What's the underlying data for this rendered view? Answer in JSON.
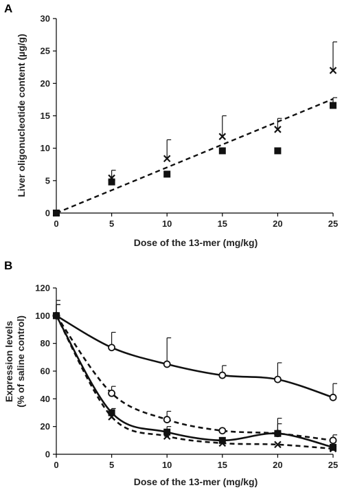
{
  "chart_data": [
    {
      "panel": "A",
      "type": "scatter",
      "xlabel": "Dose of the 13-mer (mg/kg)",
      "ylabel": "Liver oligonucleotide content (µg/g)",
      "xlim": [
        0,
        25
      ],
      "ylim": [
        0,
        30
      ],
      "xticks": [
        "0",
        "5",
        "10",
        "15",
        "20",
        "25"
      ],
      "yticks": [
        "0",
        "5",
        "10",
        "15",
        "20",
        "25",
        "30"
      ],
      "grid": false,
      "series": [
        {
          "marker": "cross",
          "x": [
            0,
            5,
            10,
            15,
            20,
            25
          ],
          "y": [
            0,
            5.4,
            8.4,
            11.8,
            12.9,
            22.0
          ],
          "error": [
            0,
            1.2,
            2.9,
            3.2,
            1.7,
            4.4
          ]
        },
        {
          "marker": "filled-square",
          "x": [
            0,
            5,
            10,
            15,
            20,
            25
          ],
          "y": [
            0,
            4.8,
            6.0,
            9.6,
            9.6,
            16.6
          ],
          "error": [
            0,
            0,
            0,
            0,
            0,
            1.2
          ]
        }
      ],
      "fit_line": {
        "style": "dashed",
        "x": [
          0,
          25
        ],
        "y": [
          0,
          17.6
        ]
      }
    },
    {
      "panel": "B",
      "type": "line",
      "xlabel": "Dose of the 13-mer (mg/kg)",
      "ylabel": "Expression levels",
      "ylabel2": "(% of saline control)",
      "xlim": [
        0,
        25
      ],
      "ylim": [
        0,
        120
      ],
      "xticks": [
        "0",
        "5",
        "10",
        "15",
        "20",
        "25"
      ],
      "yticks": [
        "0",
        "20",
        "40",
        "60",
        "80",
        "100",
        "120"
      ],
      "grid": false,
      "x": [
        0,
        5,
        10,
        15,
        20,
        25
      ],
      "series": [
        {
          "marker": "open-circle",
          "line": "solid",
          "values": [
            100,
            77,
            65,
            57,
            54,
            41
          ],
          "error": [
            8,
            11,
            19,
            7,
            12,
            10
          ]
        },
        {
          "marker": "open-circle",
          "line": "dashed",
          "values": [
            100,
            44,
            25,
            17,
            15,
            10
          ],
          "error": [
            8,
            5,
            6,
            0,
            11,
            4
          ]
        },
        {
          "marker": "filled-square",
          "line": "solid",
          "values": [
            100,
            30,
            16,
            10,
            15,
            5
          ],
          "error": [
            11,
            3,
            4,
            0,
            7,
            0
          ]
        },
        {
          "marker": "cross",
          "line": "dashed",
          "values": [
            100,
            27,
            13,
            8,
            7,
            4
          ],
          "error": [
            0,
            0,
            0,
            0,
            0,
            0
          ]
        }
      ]
    }
  ]
}
